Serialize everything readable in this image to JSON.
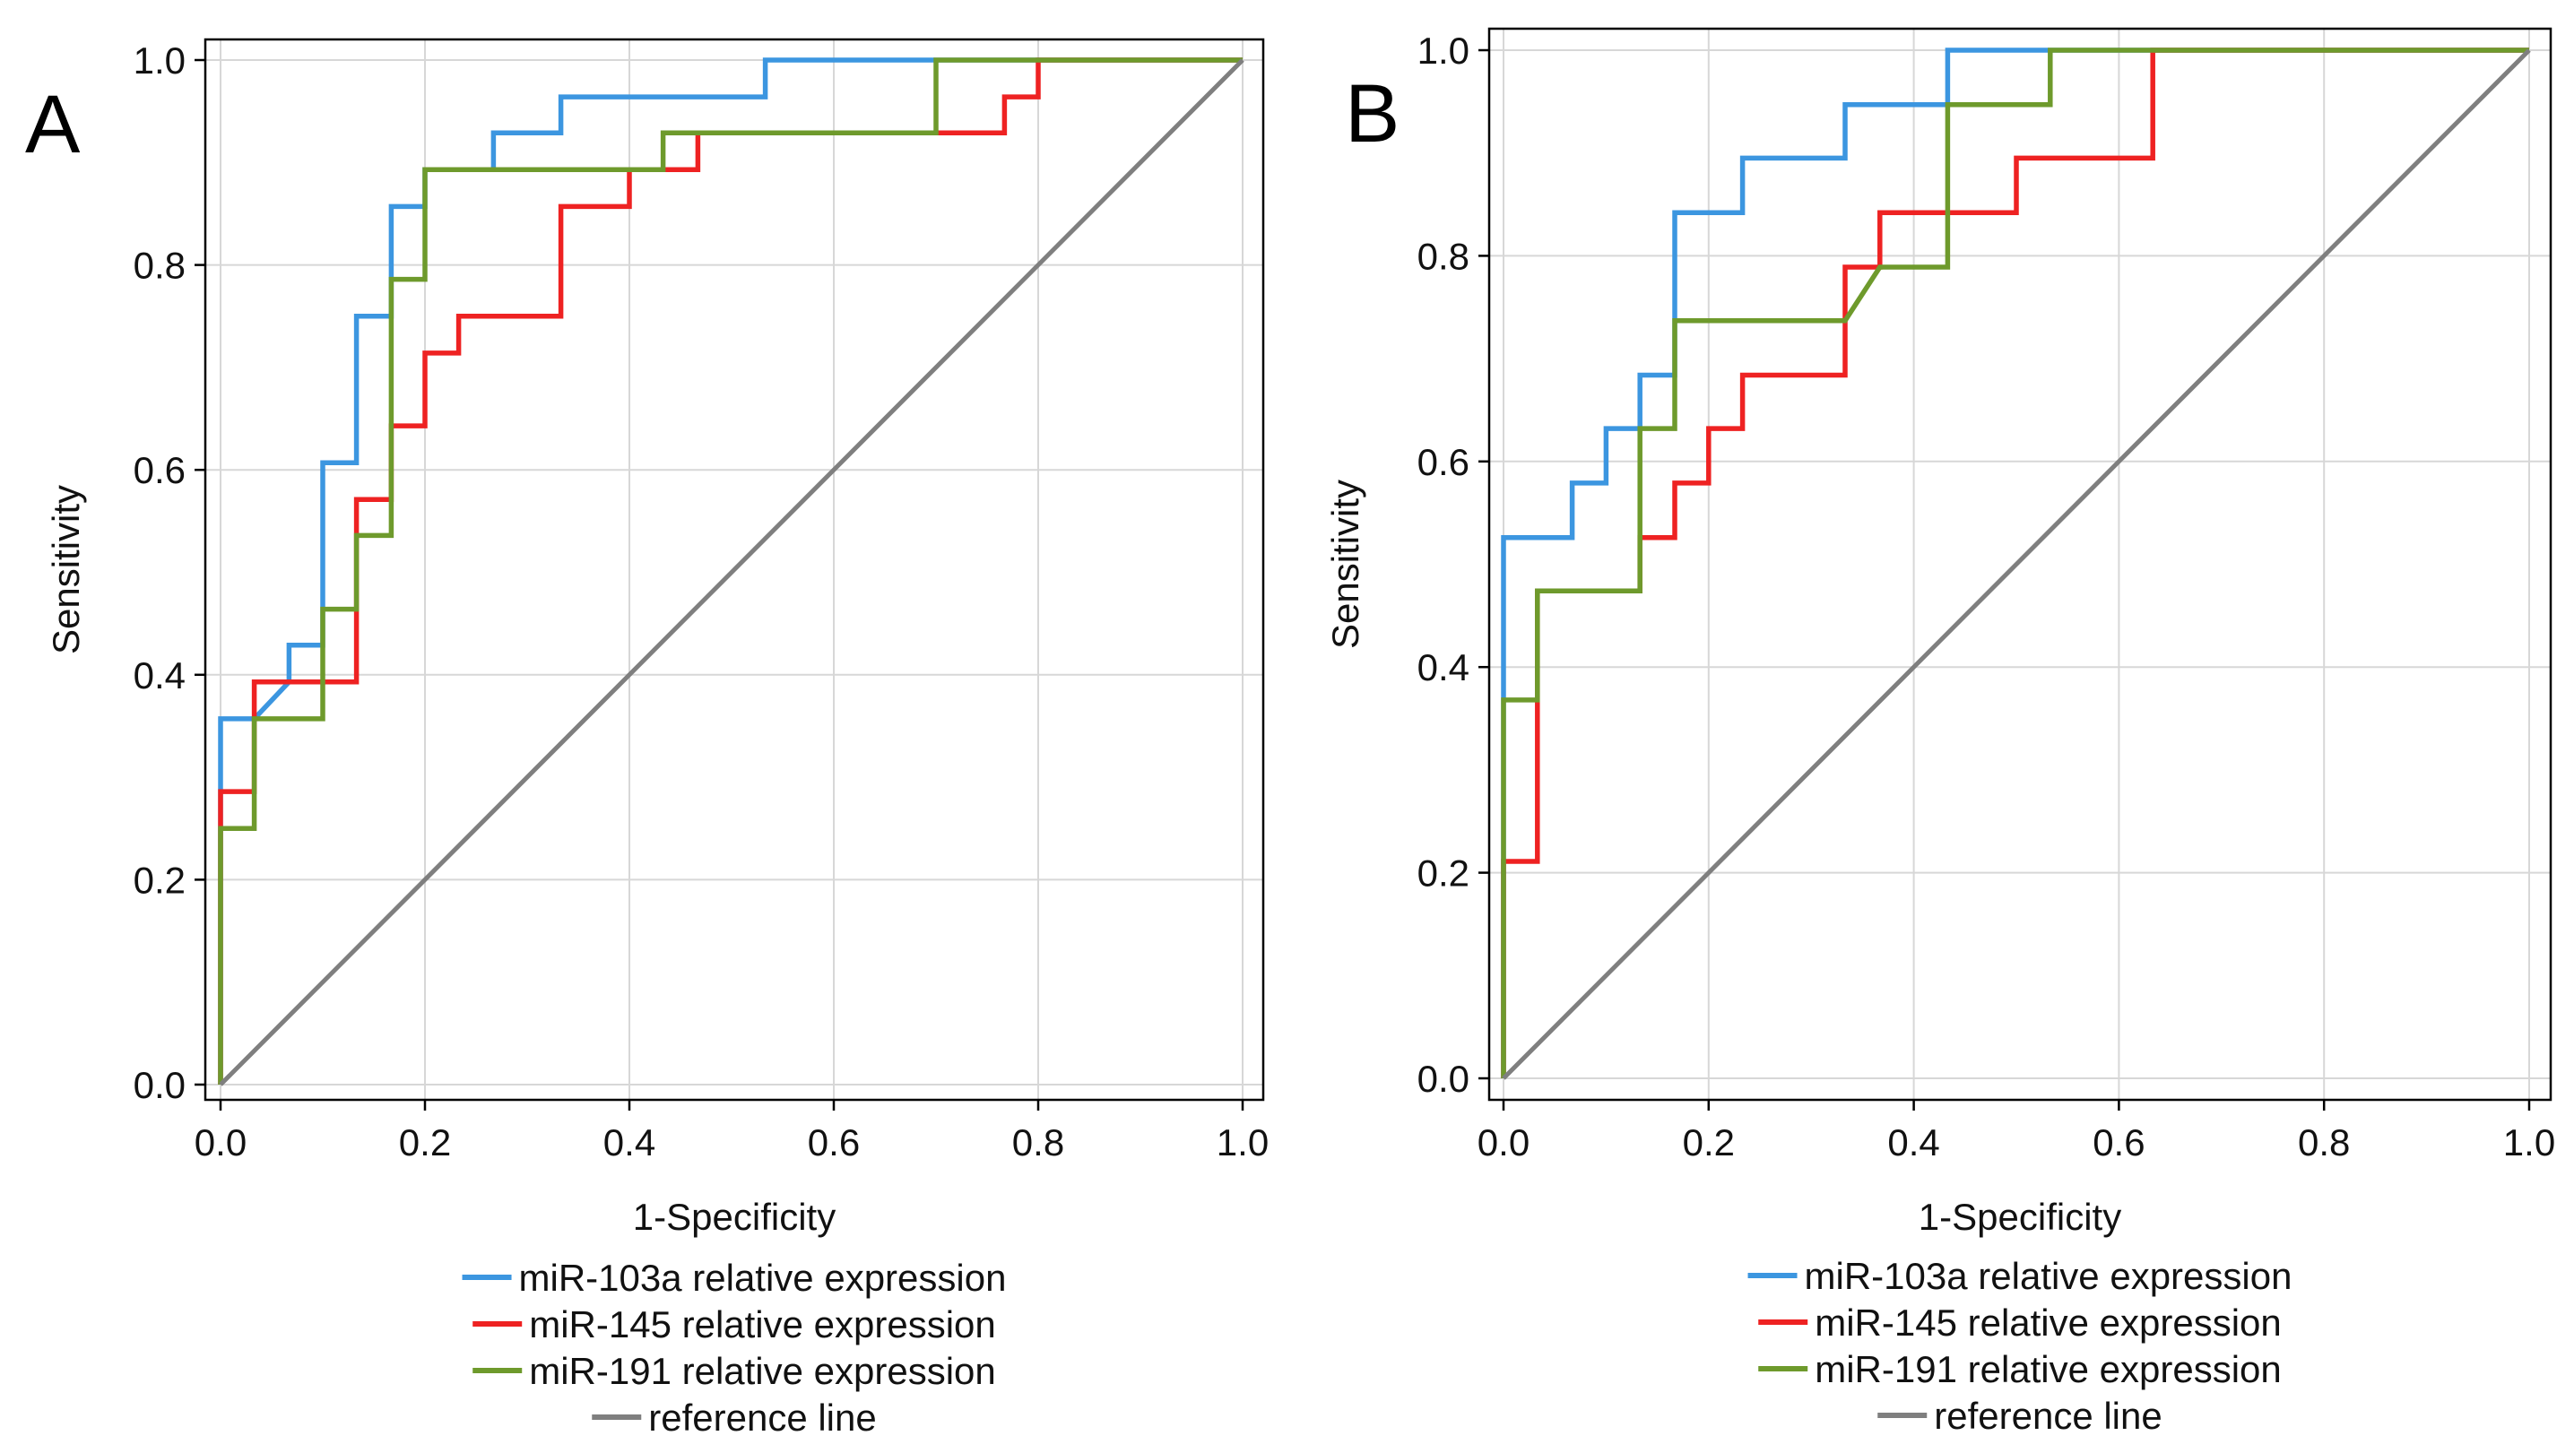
{
  "colors": {
    "mir103a": "#3c96e0",
    "mir145": "#ee2222",
    "mir191": "#6e9a2c",
    "reference": "#7f7f7f",
    "grid": "#d7d7d7",
    "frame": "#000000"
  },
  "chart_data": [
    {
      "type": "line",
      "panel": "A",
      "xlabel": "1-Specificity",
      "ylabel": "Sensitivity",
      "xlim": [
        0,
        1
      ],
      "ylim": [
        0,
        1
      ],
      "ticks": [
        "0.0",
        "0.2",
        "0.4",
        "0.6",
        "0.8",
        "1.0"
      ],
      "grid": true,
      "legend": "bottom",
      "series": [
        {
          "name": "miR-103a relative expression",
          "color_key": "mir103a",
          "points": [
            [
              0,
              0
            ],
            [
              0,
              0.357
            ],
            [
              0.033,
              0.357
            ],
            [
              0.067,
              0.393
            ],
            [
              0.067,
              0.429
            ],
            [
              0.1,
              0.429
            ],
            [
              0.1,
              0.607
            ],
            [
              0.133,
              0.607
            ],
            [
              0.133,
              0.75
            ],
            [
              0.167,
              0.75
            ],
            [
              0.167,
              0.857
            ],
            [
              0.2,
              0.857
            ],
            [
              0.2,
              0.893
            ],
            [
              0.267,
              0.893
            ],
            [
              0.267,
              0.929
            ],
            [
              0.333,
              0.929
            ],
            [
              0.333,
              0.964
            ],
            [
              0.533,
              0.964
            ],
            [
              0.533,
              1.0
            ],
            [
              1.0,
              1.0
            ]
          ]
        },
        {
          "name": "miR-145 relative expression",
          "color_key": "mir145",
          "points": [
            [
              0,
              0
            ],
            [
              0,
              0.286
            ],
            [
              0.033,
              0.286
            ],
            [
              0.033,
              0.393
            ],
            [
              0.133,
              0.393
            ],
            [
              0.133,
              0.571
            ],
            [
              0.167,
              0.571
            ],
            [
              0.167,
              0.643
            ],
            [
              0.2,
              0.643
            ],
            [
              0.2,
              0.714
            ],
            [
              0.233,
              0.714
            ],
            [
              0.233,
              0.75
            ],
            [
              0.333,
              0.75
            ],
            [
              0.333,
              0.857
            ],
            [
              0.4,
              0.857
            ],
            [
              0.4,
              0.893
            ],
            [
              0.467,
              0.893
            ],
            [
              0.467,
              0.929
            ],
            [
              0.767,
              0.929
            ],
            [
              0.767,
              0.964
            ],
            [
              0.8,
              0.964
            ],
            [
              0.8,
              1.0
            ],
            [
              1.0,
              1.0
            ]
          ]
        },
        {
          "name": "miR-191 relative expression",
          "color_key": "mir191",
          "points": [
            [
              0,
              0
            ],
            [
              0,
              0.25
            ],
            [
              0.033,
              0.25
            ],
            [
              0.033,
              0.357
            ],
            [
              0.1,
              0.357
            ],
            [
              0.1,
              0.464
            ],
            [
              0.133,
              0.464
            ],
            [
              0.133,
              0.536
            ],
            [
              0.167,
              0.536
            ],
            [
              0.167,
              0.786
            ],
            [
              0.2,
              0.786
            ],
            [
              0.2,
              0.893
            ],
            [
              0.433,
              0.893
            ],
            [
              0.433,
              0.929
            ],
            [
              0.7,
              0.929
            ],
            [
              0.7,
              1.0
            ],
            [
              1.0,
              1.0
            ]
          ]
        },
        {
          "name": "reference line",
          "color_key": "reference",
          "points": [
            [
              0,
              0
            ],
            [
              1,
              1
            ]
          ]
        }
      ]
    },
    {
      "type": "line",
      "panel": "B",
      "xlabel": "1-Specificity",
      "ylabel": "Sensitivity",
      "xlim": [
        0,
        1
      ],
      "ylim": [
        0,
        1
      ],
      "ticks": [
        "0.0",
        "0.2",
        "0.4",
        "0.6",
        "0.8",
        "1.0"
      ],
      "grid": true,
      "legend": "bottom",
      "series": [
        {
          "name": "miR-103a relative expression",
          "color_key": "mir103a",
          "points": [
            [
              0,
              0
            ],
            [
              0,
              0.526
            ],
            [
              0.067,
              0.526
            ],
            [
              0.067,
              0.579
            ],
            [
              0.1,
              0.579
            ],
            [
              0.1,
              0.632
            ],
            [
              0.133,
              0.632
            ],
            [
              0.133,
              0.684
            ],
            [
              0.167,
              0.684
            ],
            [
              0.167,
              0.842
            ],
            [
              0.233,
              0.842
            ],
            [
              0.233,
              0.895
            ],
            [
              0.333,
              0.895
            ],
            [
              0.333,
              0.947
            ],
            [
              0.433,
              0.947
            ],
            [
              0.433,
              1.0
            ],
            [
              1.0,
              1.0
            ]
          ]
        },
        {
          "name": "miR-145 relative expression",
          "color_key": "mir145",
          "points": [
            [
              0,
              0
            ],
            [
              0,
              0.211
            ],
            [
              0.033,
              0.211
            ],
            [
              0.033,
              0.474
            ],
            [
              0.133,
              0.474
            ],
            [
              0.133,
              0.526
            ],
            [
              0.167,
              0.526
            ],
            [
              0.167,
              0.579
            ],
            [
              0.2,
              0.579
            ],
            [
              0.2,
              0.632
            ],
            [
              0.233,
              0.632
            ],
            [
              0.233,
              0.684
            ],
            [
              0.333,
              0.684
            ],
            [
              0.333,
              0.789
            ],
            [
              0.367,
              0.789
            ],
            [
              0.367,
              0.842
            ],
            [
              0.433,
              0.842
            ],
            [
              0.5,
              0.842
            ],
            [
              0.5,
              0.895
            ],
            [
              0.633,
              0.895
            ],
            [
              0.633,
              1.0
            ],
            [
              1.0,
              1.0
            ]
          ]
        },
        {
          "name": "miR-191 relative expression",
          "color_key": "mir191",
          "points": [
            [
              0,
              0
            ],
            [
              0,
              0.368
            ],
            [
              0.033,
              0.368
            ],
            [
              0.033,
              0.474
            ],
            [
              0.133,
              0.474
            ],
            [
              0.133,
              0.632
            ],
            [
              0.167,
              0.632
            ],
            [
              0.167,
              0.737
            ],
            [
              0.333,
              0.737
            ],
            [
              0.367,
              0.789
            ],
            [
              0.433,
              0.789
            ],
            [
              0.433,
              0.947
            ],
            [
              0.533,
              0.947
            ],
            [
              0.533,
              1.0
            ],
            [
              1.0,
              1.0
            ]
          ]
        },
        {
          "name": "reference line",
          "color_key": "reference",
          "points": [
            [
              0,
              0
            ],
            [
              1,
              1
            ]
          ]
        }
      ]
    }
  ]
}
